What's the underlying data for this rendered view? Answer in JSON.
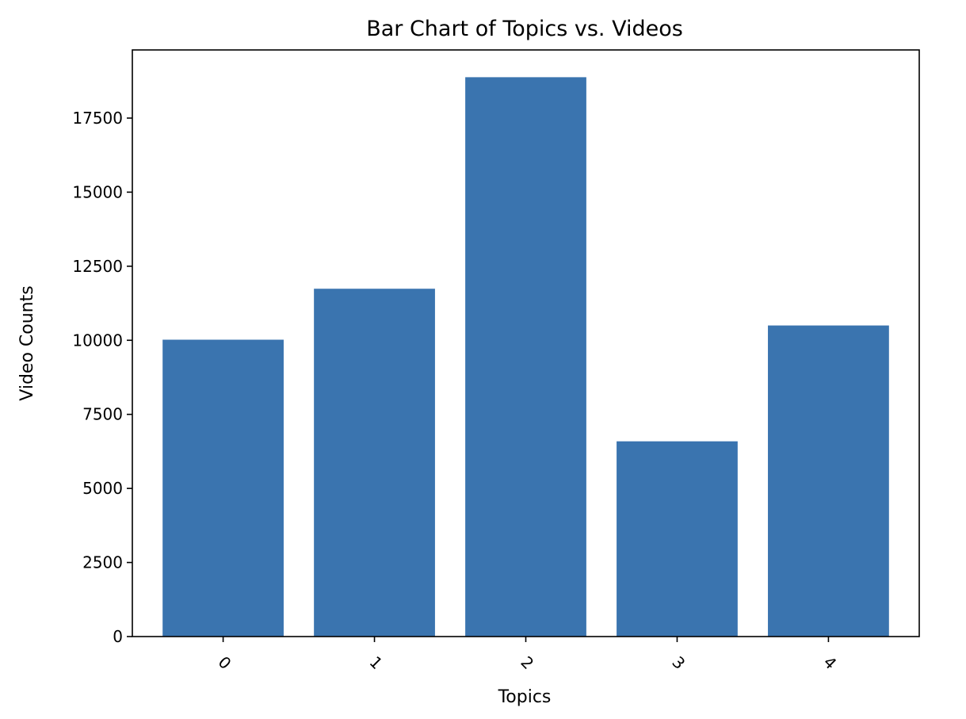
{
  "chart_data": {
    "type": "bar",
    "title": "Bar Chart of Topics vs. Videos",
    "xlabel": "Topics",
    "ylabel": "Video Counts",
    "categories": [
      "0",
      "1",
      "2",
      "3",
      "4"
    ],
    "values": [
      10020,
      11740,
      18880,
      6590,
      10500
    ],
    "ylim": [
      0,
      19800
    ],
    "yticks": [
      0,
      2500,
      5000,
      7500,
      10000,
      12500,
      15000,
      17500
    ],
    "ytick_labels": [
      "0",
      "2500",
      "5000",
      "7500",
      "10000",
      "12500",
      "15000",
      "17500"
    ],
    "xtick_rotation_deg": 45,
    "grid": false,
    "legend": "none",
    "bar_color": "#3a74af"
  }
}
